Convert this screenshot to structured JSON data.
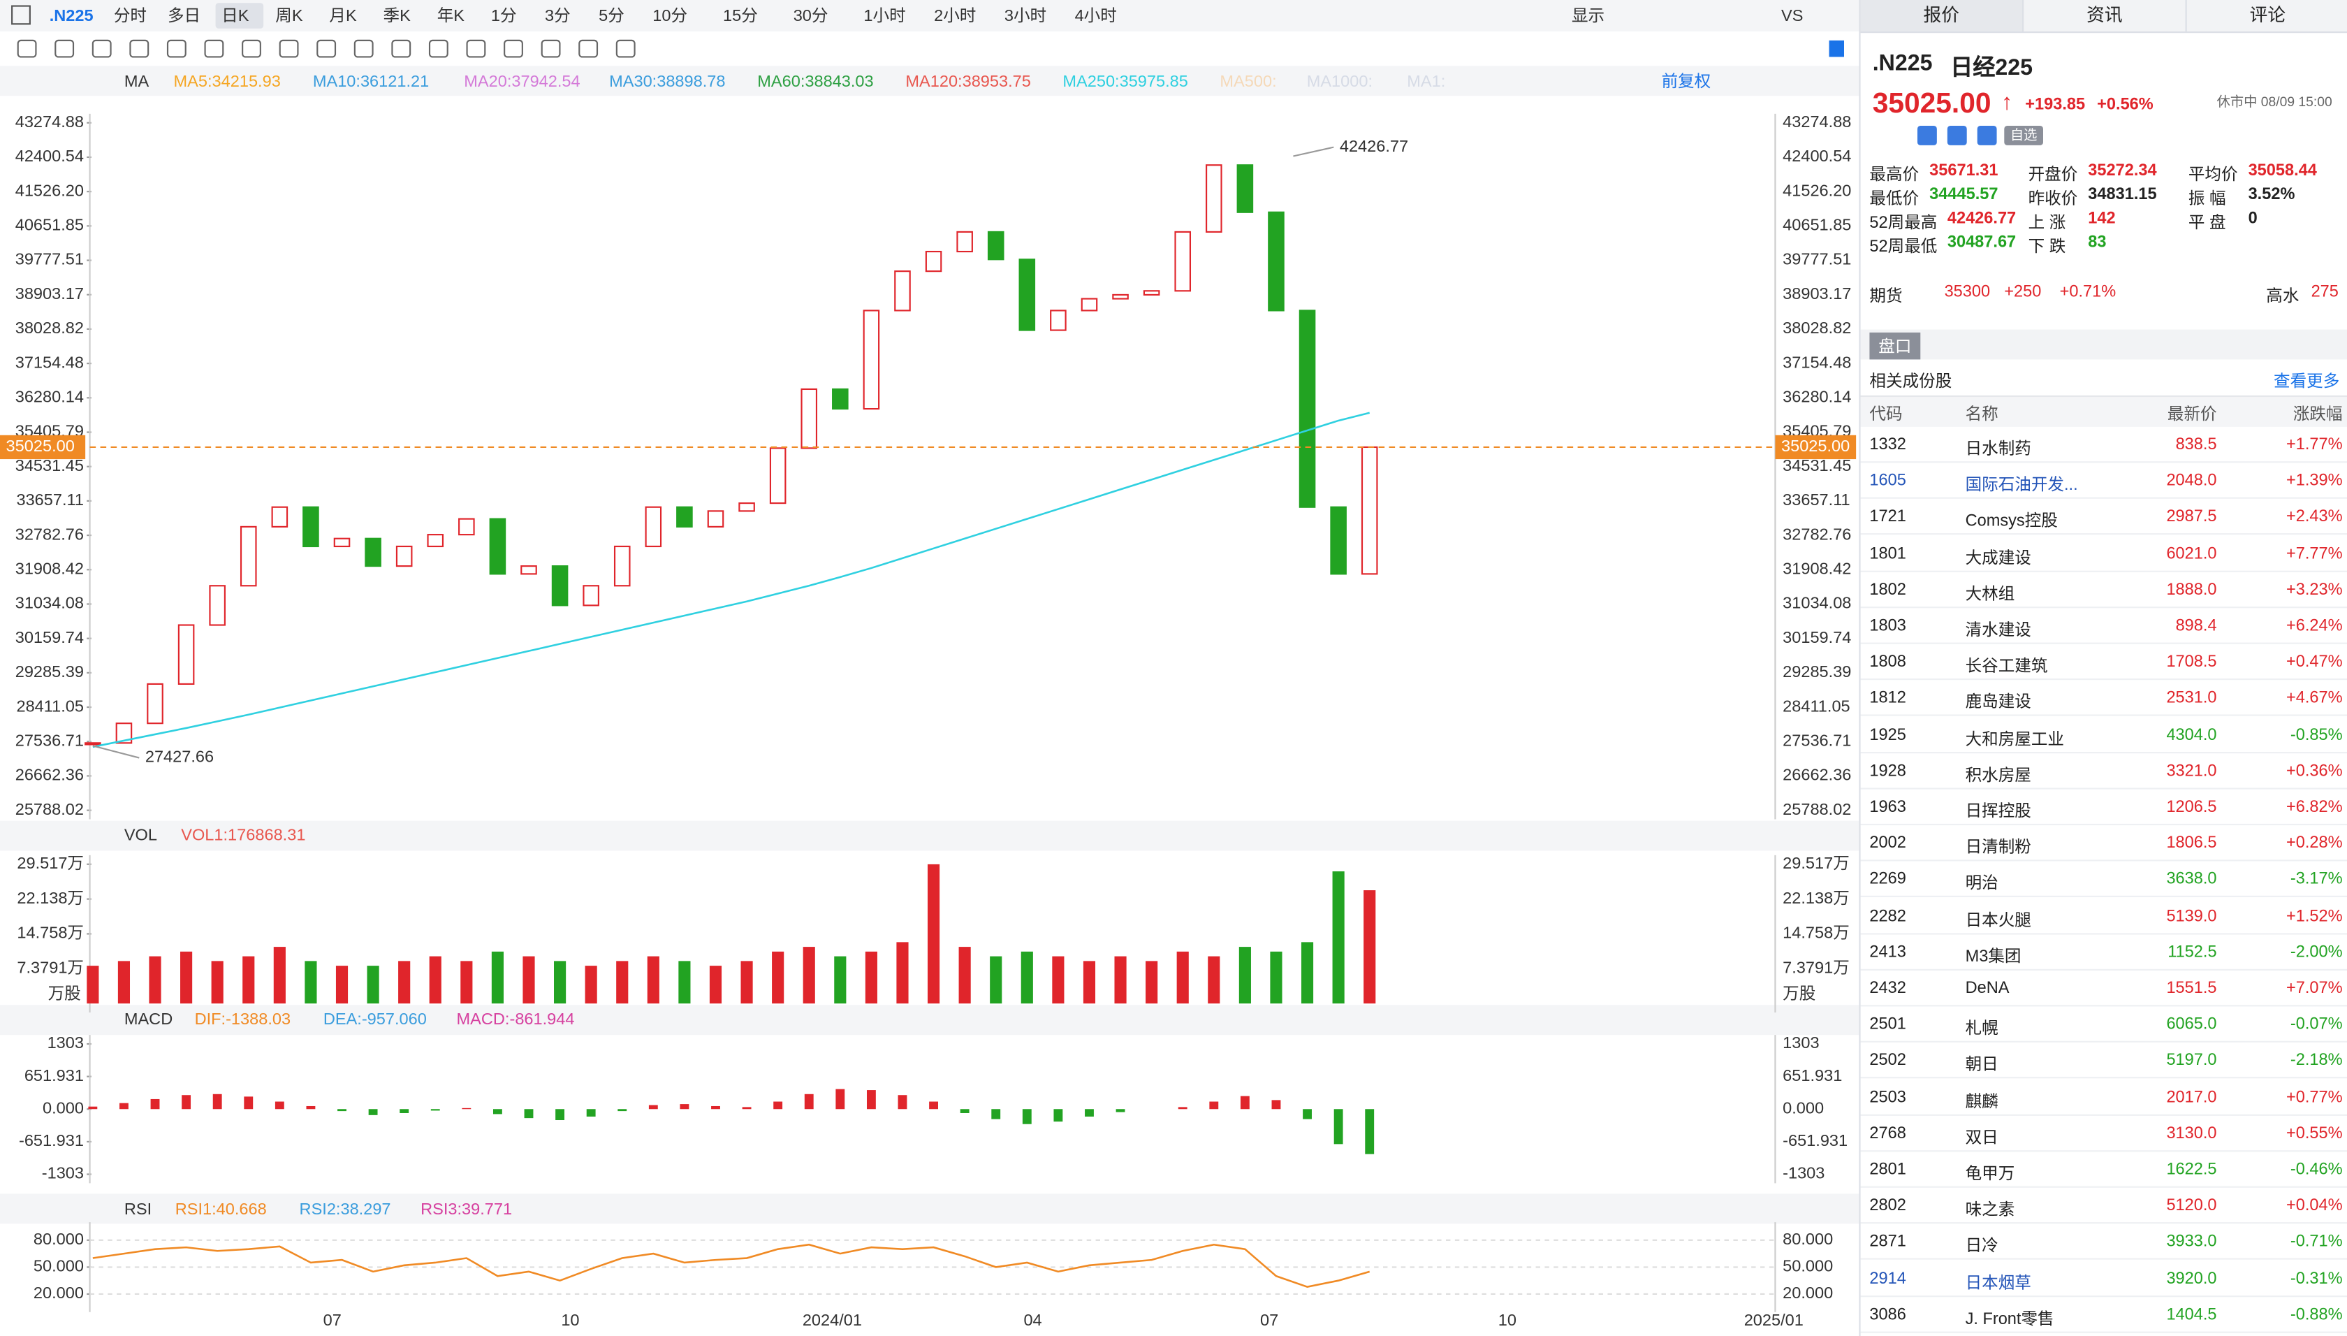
{
  "toolbar": {
    "symbol": ".N225",
    "periods": [
      "分时",
      "多日",
      "日K",
      "周K",
      "月K",
      "季K",
      "年K",
      "1分",
      "3分",
      "5分",
      "10分",
      "15分",
      "30分",
      "1小时",
      "2小时",
      "3小时",
      "4小时"
    ],
    "active": "日K",
    "right": [
      "显示",
      "VS"
    ]
  },
  "ma_legend": {
    "label": "MA",
    "items": [
      {
        "text": "MA5:34215.93",
        "color": "#f5a623"
      },
      {
        "text": "MA10:36121.21",
        "color": "#3b9ddd"
      },
      {
        "text": "MA20:37942.54",
        "color": "#d47ad8"
      },
      {
        "text": "MA30:38898.78",
        "color": "#3b9ddd"
      },
      {
        "text": "MA60:38843.03",
        "color": "#2ea043"
      },
      {
        "text": "MA120:38953.75",
        "color": "#e8574f"
      },
      {
        "text": "MA250:35975.85",
        "color": "#2fd0e0"
      },
      {
        "text": "MA500:",
        "color": "#f5d9b8"
      },
      {
        "text": "MA1000:",
        "color": "#d6dbe6"
      },
      {
        "text": "MA1:",
        "color": "#d6dbe6"
      }
    ],
    "adjust": "前复权"
  },
  "chart_data": [
    {
      "type": "candlestick",
      "closes": [
        27500,
        28000,
        29000,
        30500,
        31500,
        33000,
        33500,
        32500,
        32700,
        32000,
        32500,
        32800,
        33200,
        31800,
        32000,
        31000,
        31500,
        32500,
        33500,
        33000,
        33400,
        33600,
        35000,
        36500,
        36000,
        38500,
        39500,
        40000,
        40500,
        39800,
        38000,
        38500,
        38800,
        38900,
        39000,
        40500,
        42200,
        41000,
        38500,
        33500,
        31800,
        35025
      ],
      "series": [
        {
          "name": "MA250",
          "color": "#2fd0e0",
          "values": [
            27400,
            27560,
            27720,
            27880,
            28050,
            28220,
            28400,
            28580,
            28760,
            28940,
            29120,
            29300,
            29480,
            29660,
            29840,
            30020,
            30200,
            30380,
            30560,
            30740,
            30920,
            31100,
            31300,
            31500,
            31720,
            31950,
            32200,
            32450,
            32700,
            32950,
            33200,
            33450,
            33700,
            33950,
            34200,
            34450,
            34700,
            34950,
            35200,
            35450,
            35700,
            35900
          ]
        }
      ],
      "up_color": "#e0252b",
      "down_color": "#22a322",
      "ylim": [
        25788.02,
        43274.88
      ],
      "yticks": [
        43274.88,
        42400.54,
        {
          "value": 41526.2,
          "label": "41526.20"
        },
        40651.85,
        39777.51,
        38903.17,
        38028.82,
        37154.48,
        36280.14,
        35405.79,
        34531.45,
        33657.11,
        32782.76,
        31908.42,
        31034.08,
        30159.74,
        29285.39,
        28411.05,
        27536.71,
        26662.36,
        25788.02
      ],
      "last": {
        "value": 35025,
        "label": "35025.00"
      },
      "annotations": [
        42426.77,
        27427.66
      ],
      "x_labels": [
        "07",
        "10",
        "2024/01",
        "04",
        "07",
        "10",
        "2025/01"
      ]
    },
    {
      "type": "bar",
      "name": "VOL",
      "legend": "VOL1:176868.31",
      "unit": "万股",
      "values": [
        8,
        9,
        10,
        11,
        9,
        10,
        12,
        9,
        8,
        8,
        9,
        10,
        9,
        11,
        10,
        9,
        8,
        9,
        10,
        9,
        8,
        9,
        11,
        12,
        10,
        11,
        13,
        29.5,
        12,
        10,
        11,
        10,
        9,
        10,
        9,
        11,
        10,
        12,
        11,
        13,
        28,
        24
      ],
      "ylim": [
        0,
        29.517
      ],
      "yticks": [
        {
          "value": 29.517,
          "label": "29.517万"
        },
        {
          "value": 22.138,
          "label": "22.138万"
        },
        {
          "value": 14.758,
          "label": "14.758万"
        },
        {
          "value": 7.3791,
          "label": "7.3791万"
        }
      ]
    },
    {
      "type": "bar",
      "name": "MACD",
      "legend": [
        {
          "text": "DIF:-1388.03",
          "color": "#f08a24"
        },
        {
          "text": "DEA:-957.060",
          "color": "#3b9ddd"
        },
        {
          "text": "MACD:-861.944",
          "color": "#d6409f"
        }
      ],
      "values": [
        50,
        120,
        200,
        280,
        300,
        250,
        150,
        60,
        -40,
        -120,
        -80,
        -30,
        20,
        -100,
        -180,
        -220,
        -150,
        -40,
        80,
        100,
        60,
        40,
        150,
        300,
        400,
        380,
        280,
        150,
        -80,
        -200,
        -300,
        -250,
        -150,
        -60,
        0,
        40,
        150,
        260,
        180,
        -200,
        -700,
        -900
      ],
      "ylim": [
        -1303,
        1303
      ],
      "yticks": [
        1303,
        651.931,
        {
          "value": 0,
          "label": "0.000"
        },
        -651.931,
        -1303
      ]
    },
    {
      "type": "line",
      "name": "RSI",
      "legend": [
        {
          "text": "RSI1:40.668",
          "color": "#f08a24"
        },
        {
          "text": "RSI2:38.297",
          "color": "#3b9ddd"
        },
        {
          "text": "RSI3:39.771",
          "color": "#d6409f"
        }
      ],
      "values": [
        60,
        65,
        70,
        72,
        68,
        70,
        73,
        55,
        58,
        45,
        52,
        55,
        60,
        40,
        45,
        35,
        48,
        60,
        65,
        55,
        58,
        60,
        70,
        75,
        65,
        72,
        70,
        72,
        62,
        50,
        55,
        45,
        52,
        55,
        58,
        68,
        75,
        70,
        40,
        28,
        35,
        45
      ],
      "color": "#f08a24",
      "ylim": [
        10,
        90
      ],
      "yticks": [
        {
          "value": 80,
          "label": "80.000"
        },
        {
          "value": 50,
          "label": "50.000"
        },
        {
          "value": 20,
          "label": "20.000"
        }
      ]
    }
  ],
  "right_panel": {
    "tabs": [
      "报价",
      "资讯",
      "评论"
    ],
    "symbol": ".N225",
    "name": "日经225",
    "price": "35025.00",
    "change": "+193.85",
    "pct": "+0.56%",
    "status": "休市中 08/09 15:00",
    "watch": "自选",
    "stats": [
      [
        [
          "最高价",
          "35671.31",
          "#e0252b"
        ],
        [
          "开盘价",
          "35272.34",
          "#e0252b"
        ],
        [
          "平均价",
          "35058.44",
          "#e0252b"
        ]
      ],
      [
        [
          "最低价",
          "34445.57",
          "#22a322"
        ],
        [
          "昨收价",
          "34831.15",
          "#222"
        ],
        [
          "振 幅",
          "3.52%",
          "#222"
        ]
      ],
      [
        [
          "52周最高",
          "42426.77",
          "#e0252b"
        ],
        [
          "上 涨",
          "142",
          "#e0252b"
        ],
        [
          "平 盘",
          "0",
          "#222"
        ]
      ],
      [
        [
          "52周最低",
          "30487.67",
          "#22a322"
        ],
        [
          "下 跌",
          "83",
          "#22a322"
        ]
      ]
    ],
    "futures": {
      "label": "期货",
      "price": "35300",
      "change": "+250",
      "pct": "+0.71%",
      "premium_label": "高水",
      "premium": "275"
    },
    "section": "盘口",
    "list_title": "相关成份股",
    "more": "查看更多",
    "headers": [
      "代码",
      "名称",
      "最新价",
      "涨跌幅"
    ],
    "rows": [
      [
        "1332",
        "日水制药",
        "838.5",
        "+1.77%"
      ],
      [
        "1605",
        "国际石油开发...",
        "2048.0",
        "+1.39%"
      ],
      [
        "1721",
        "Comsys控股",
        "2987.5",
        "+2.43%"
      ],
      [
        "1801",
        "大成建设",
        "6021.0",
        "+7.77%"
      ],
      [
        "1802",
        "大林组",
        "1888.0",
        "+3.23%"
      ],
      [
        "1803",
        "清水建设",
        "898.4",
        "+6.24%"
      ],
      [
        "1808",
        "长谷工建筑",
        "1708.5",
        "+0.47%"
      ],
      [
        "1812",
        "鹿岛建设",
        "2531.0",
        "+4.67%"
      ],
      [
        "1925",
        "大和房屋工业",
        "4304.0",
        "-0.85%"
      ],
      [
        "1928",
        "积水房屋",
        "3321.0",
        "+0.36%"
      ],
      [
        "1963",
        "日挥控股",
        "1206.5",
        "+6.82%"
      ],
      [
        "2002",
        "日清制粉",
        "1806.5",
        "+0.28%"
      ],
      [
        "2269",
        "明治",
        "3638.0",
        "-3.17%"
      ],
      [
        "2282",
        "日本火腿",
        "5139.0",
        "+1.52%"
      ],
      [
        "2413",
        "M3集团",
        "1152.5",
        "-2.00%"
      ],
      [
        "2432",
        "DeNA",
        "1551.5",
        "+7.07%"
      ],
      [
        "2501",
        "札幌",
        "6065.0",
        "-0.07%"
      ],
      [
        "2502",
        "朝日",
        "5197.0",
        "-2.18%"
      ],
      [
        "2503",
        "麒麟",
        "2017.0",
        "+0.77%"
      ],
      [
        "2768",
        "双日",
        "3130.0",
        "+0.55%"
      ],
      [
        "2801",
        "龟甲万",
        "1622.5",
        "-0.46%"
      ],
      [
        "2802",
        "味之素",
        "5120.0",
        "+0.04%"
      ],
      [
        "2871",
        "日冷",
        "3933.0",
        "-0.71%"
      ],
      [
        "2914",
        "日本烟草",
        "3920.0",
        "-0.31%"
      ],
      [
        "3086",
        "J. Front零售",
        "1404.5",
        "-0.88%"
      ]
    ],
    "highlight_codes": [
      "1605",
      "2914"
    ]
  }
}
